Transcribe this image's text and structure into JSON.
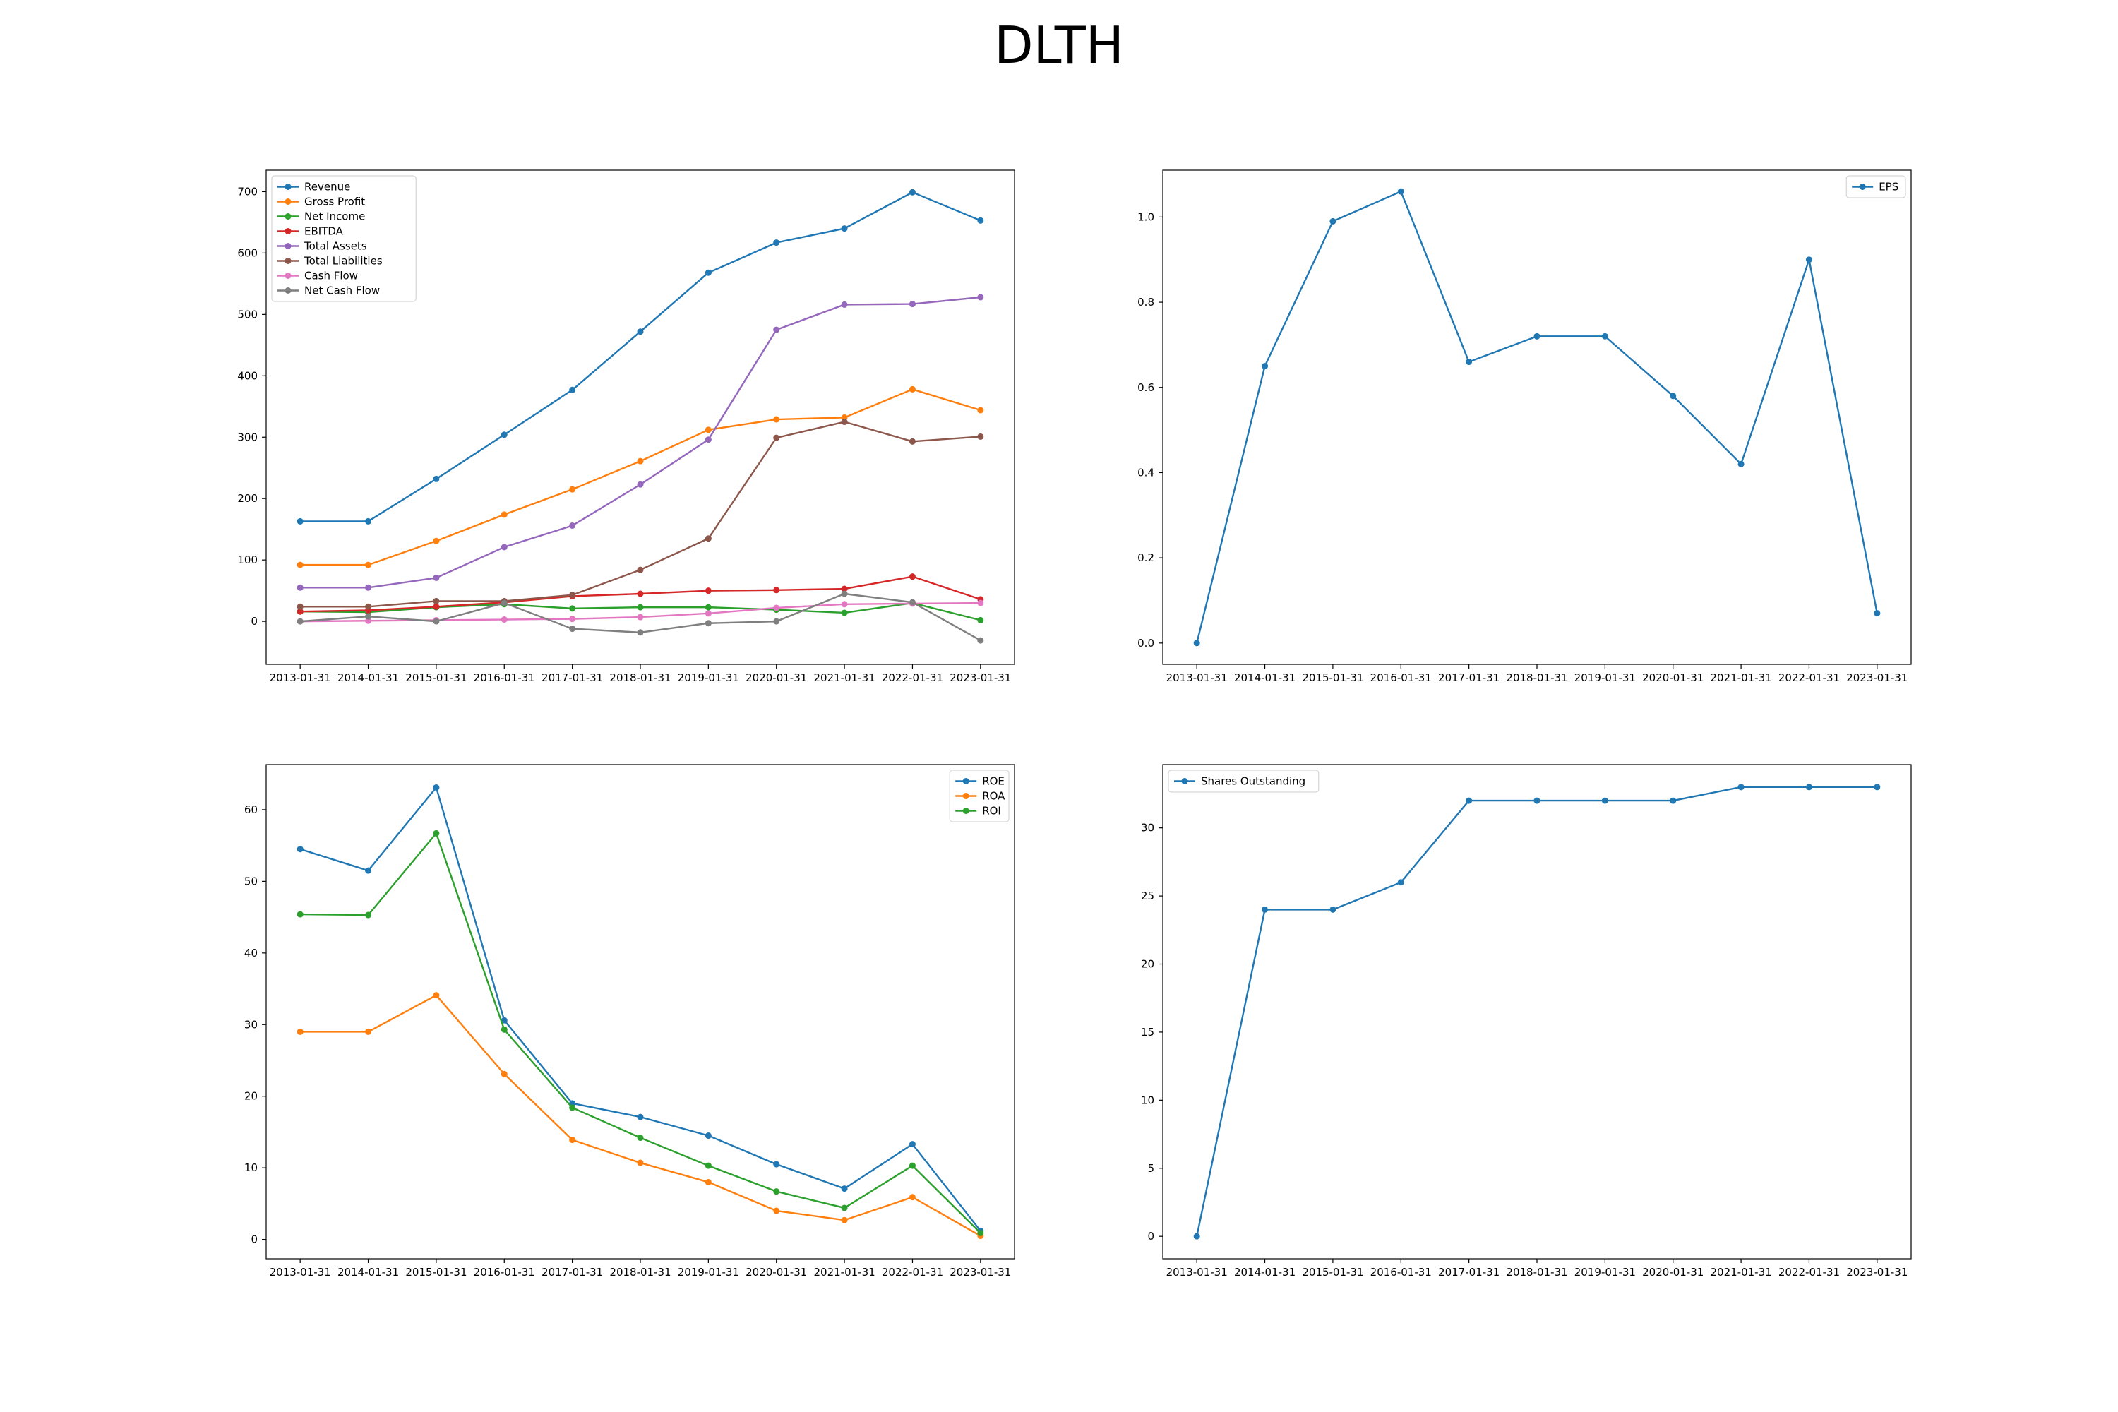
{
  "title": "DLTH",
  "chart_data": [
    {
      "type": "line",
      "x": [
        "2013-01-31",
        "2014-01-31",
        "2015-01-31",
        "2016-01-31",
        "2017-01-31",
        "2018-01-31",
        "2019-01-31",
        "2020-01-31",
        "2021-01-31",
        "2022-01-31",
        "2023-01-31"
      ],
      "ylim": [
        -70,
        735
      ],
      "yticks": [
        0,
        100,
        200,
        300,
        400,
        500,
        600,
        700
      ],
      "legend": "upper left",
      "series": [
        {
          "name": "Revenue",
          "color": "#1f77b4",
          "values": [
            163,
            163,
            232,
            304,
            377,
            472,
            568,
            617,
            640,
            699,
            653
          ]
        },
        {
          "name": "Gross Profit",
          "color": "#ff7f0e",
          "values": [
            92,
            92,
            131,
            174,
            215,
            261,
            312,
            329,
            332,
            378,
            344
          ]
        },
        {
          "name": "Net Income",
          "color": "#2ca02c",
          "values": [
            16,
            15,
            23,
            28,
            21,
            23,
            23,
            19,
            14,
            30,
            2
          ]
        },
        {
          "name": "EBITDA",
          "color": "#d62728",
          "values": [
            16,
            18,
            24,
            31,
            41,
            45,
            50,
            51,
            53,
            73,
            36
          ]
        },
        {
          "name": "Total Assets",
          "color": "#9467bd",
          "values": [
            55,
            55,
            71,
            121,
            156,
            223,
            296,
            475,
            516,
            517,
            528
          ]
        },
        {
          "name": "Total Liabilities",
          "color": "#8c564b",
          "values": [
            24,
            24,
            33,
            33,
            43,
            84,
            135,
            299,
            325,
            293,
            301
          ]
        },
        {
          "name": "Cash Flow",
          "color": "#e377c2",
          "values": [
            0,
            1,
            2,
            3,
            4,
            7,
            13,
            22,
            28,
            29,
            30
          ]
        },
        {
          "name": "Net Cash Flow",
          "color": "#7f7f7f",
          "values": [
            0,
            8,
            0,
            30,
            -12,
            -18,
            -3,
            0,
            45,
            31,
            -31
          ]
        }
      ]
    },
    {
      "type": "line",
      "x": [
        "2013-01-31",
        "2014-01-31",
        "2015-01-31",
        "2016-01-31",
        "2017-01-31",
        "2018-01-31",
        "2019-01-31",
        "2020-01-31",
        "2021-01-31",
        "2022-01-31",
        "2023-01-31"
      ],
      "ylim": [
        -0.05,
        1.11
      ],
      "yticks": [
        0.0,
        0.2,
        0.4,
        0.6,
        0.8,
        1.0
      ],
      "ytick_labels": [
        "0.0",
        "0.2",
        "0.4",
        "0.6",
        "0.8",
        "1.0"
      ],
      "legend": "upper right",
      "series": [
        {
          "name": "EPS",
          "color": "#1f77b4",
          "values": [
            0.0,
            0.65,
            0.99,
            1.06,
            0.66,
            0.72,
            0.72,
            0.58,
            0.42,
            0.9,
            0.07
          ]
        }
      ]
    },
    {
      "type": "line",
      "x": [
        "2013-01-31",
        "2014-01-31",
        "2015-01-31",
        "2016-01-31",
        "2017-01-31",
        "2018-01-31",
        "2019-01-31",
        "2020-01-31",
        "2021-01-31",
        "2022-01-31",
        "2023-01-31"
      ],
      "ylim": [
        -2.7,
        66.3
      ],
      "yticks": [
        0,
        10,
        20,
        30,
        40,
        50,
        60
      ],
      "legend": "upper right",
      "series": [
        {
          "name": "ROE",
          "color": "#1f77b4",
          "values": [
            54.5,
            51.5,
            63.1,
            30.6,
            19.0,
            17.1,
            14.5,
            10.5,
            7.1,
            13.3,
            1.2
          ]
        },
        {
          "name": "ROA",
          "color": "#ff7f0e",
          "values": [
            29.0,
            29.0,
            34.1,
            23.1,
            13.9,
            10.7,
            8.0,
            4.0,
            2.7,
            5.9,
            0.5
          ]
        },
        {
          "name": "ROI",
          "color": "#2ca02c",
          "values": [
            45.4,
            45.3,
            56.7,
            29.3,
            18.4,
            14.2,
            10.3,
            6.7,
            4.4,
            10.3,
            0.9
          ]
        }
      ]
    },
    {
      "type": "line",
      "x": [
        "2013-01-31",
        "2014-01-31",
        "2015-01-31",
        "2016-01-31",
        "2017-01-31",
        "2018-01-31",
        "2019-01-31",
        "2020-01-31",
        "2021-01-31",
        "2022-01-31",
        "2023-01-31"
      ],
      "ylim": [
        -1.65,
        34.65
      ],
      "yticks": [
        0,
        5,
        10,
        15,
        20,
        25,
        30
      ],
      "legend": "upper left",
      "series": [
        {
          "name": "Shares Outstanding",
          "color": "#1f77b4",
          "values": [
            0,
            24,
            24,
            26,
            32,
            32,
            32,
            32,
            33,
            33,
            33
          ]
        }
      ]
    }
  ]
}
